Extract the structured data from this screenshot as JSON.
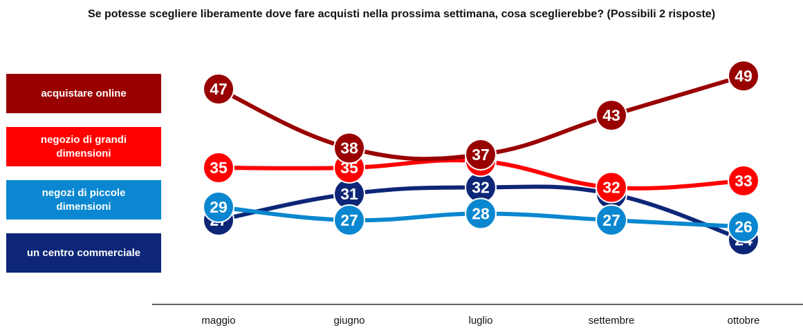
{
  "chart_data": {
    "type": "line",
    "title": "Se potesse scegliere liberamente dove fare acquisti nella prossima settimana, cosa sceglierebbe?  (Possibili 2 risposte)",
    "categories": [
      "maggio",
      "giugno",
      "luglio",
      "settembre",
      "ottobre"
    ],
    "xlabel": "",
    "ylabel": "",
    "ylim": [
      20,
      52
    ],
    "grid": false,
    "legend_position": "left",
    "series": [
      {
        "name": "acquistare online",
        "color": "#990000",
        "values": [
          47,
          38,
          37,
          43,
          49
        ]
      },
      {
        "name": "negozio di grandi dimensioni",
        "color": "#ff0000",
        "values": [
          35,
          35,
          36,
          32,
          33
        ]
      },
      {
        "name": "negozi di piccole dimensioni",
        "color": "#0a87d0",
        "values": [
          29,
          27,
          28,
          27,
          26
        ]
      },
      {
        "name": "un centro commerciale",
        "color": "#0d2677",
        "values": [
          27,
          31,
          32,
          31,
          24
        ]
      }
    ]
  }
}
